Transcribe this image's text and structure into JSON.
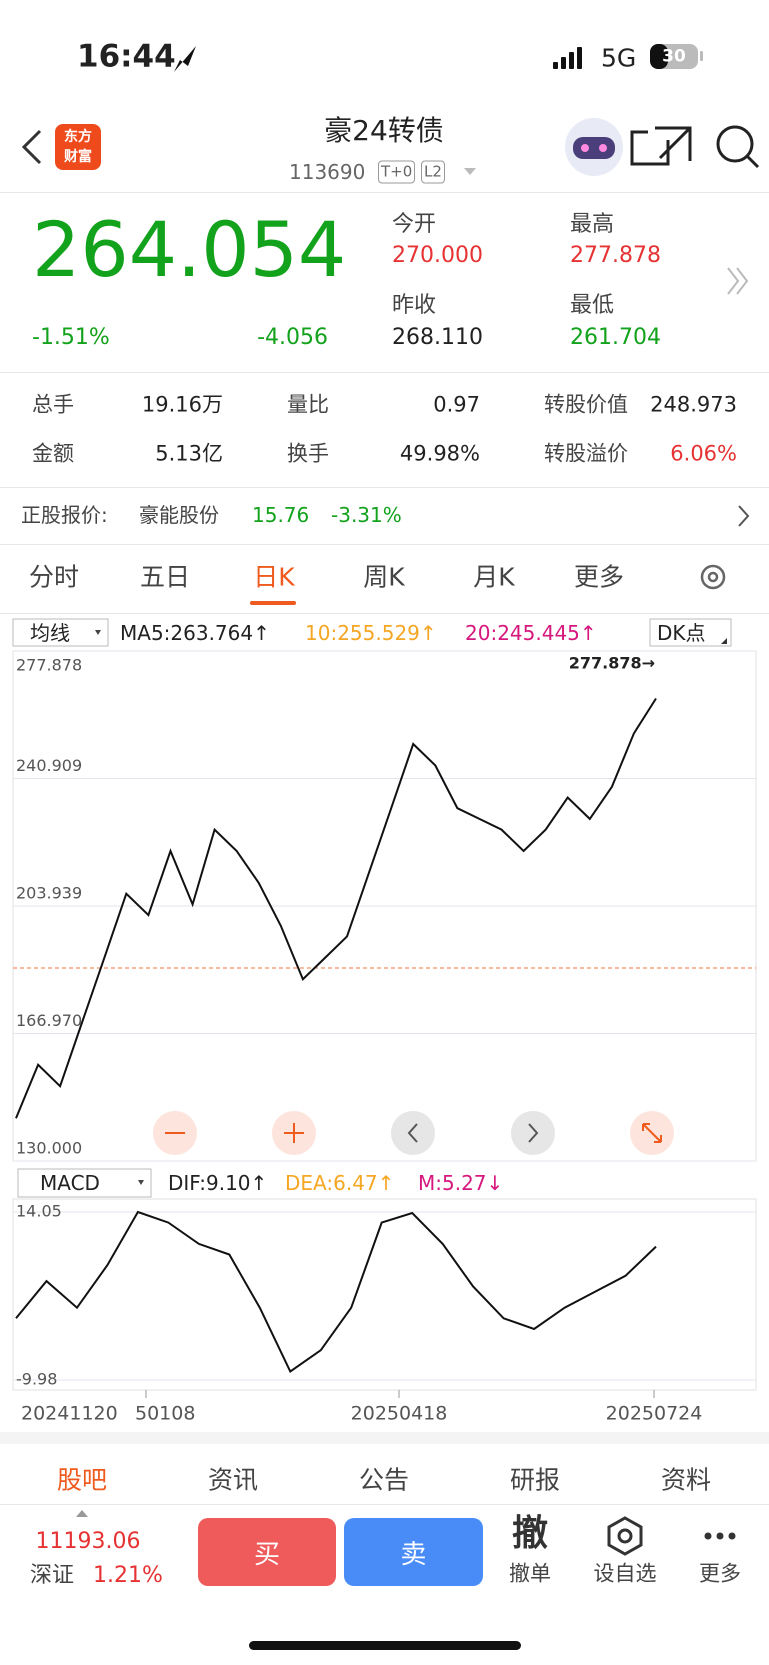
{
  "status": {
    "time": "16:44",
    "network": "5G",
    "battery": "30"
  },
  "header": {
    "logo": [
      "东方",
      "财富"
    ],
    "title": "豪24转债",
    "code": "113690",
    "tags": [
      "T+0",
      "L2"
    ]
  },
  "quote": {
    "price": "264.054",
    "change_pct": "-1.51%",
    "change": "-4.056",
    "open_label": "今开",
    "open": "270.000",
    "high_label": "最高",
    "high": "277.878",
    "prev_label": "昨收",
    "prev": "268.110",
    "low_label": "最低",
    "low": "261.704"
  },
  "stats": [
    [
      "总手",
      "19.16万"
    ],
    [
      "量比",
      "0.97"
    ],
    [
      "转股价值",
      "248.973"
    ],
    [
      "金额",
      "5.13亿"
    ],
    [
      "换手",
      "49.98%"
    ],
    [
      "转股溢价",
      "6.06%"
    ]
  ],
  "underlying": {
    "label": "正股报价:",
    "name": "豪能股份",
    "price": "15.76",
    "change": "-3.31%"
  },
  "tabs": [
    "分时",
    "五日",
    "日K",
    "周K",
    "月K",
    "更多"
  ],
  "ma_bar": {
    "selector": "均线",
    "ma5": "MA5:263.764↑",
    "ma10": "10:255.529↑",
    "ma20": "20:245.445↑",
    "dk": "DK点"
  },
  "price_chart": {
    "type": "line",
    "ylim": [
      130,
      277.878
    ],
    "yticks": [
      {
        "value": 130,
        "label": "130.000"
      },
      {
        "value": 166.97,
        "label": "166.970"
      },
      203.939,
      240.909,
      277.878
    ],
    "max_label": "277.878→",
    "color": "#111111",
    "values": [
      142.4,
      157.9,
      151.7,
      170.3,
      188.9,
      207.5,
      201.3,
      219.9,
      204.4,
      226.1,
      219.9,
      210.6,
      198.2,
      182.7,
      188.9,
      195.1,
      213.7,
      232.3,
      250.9,
      244.7,
      232.3,
      229.2,
      226.1,
      219.9,
      226.1,
      235.4,
      229.2,
      238.5,
      254.0,
      264.1
    ]
  },
  "macd_bar": {
    "selector": "MACD",
    "dif": "DIF:9.10↑",
    "dea": "DEA:6.47↑",
    "m": "M:5.27↓"
  },
  "macd_chart": {
    "type": "line",
    "ylim": [
      -9.98,
      14.05
    ],
    "yticks": [
      -9.98,
      14.05
    ],
    "color": "#111111",
    "values": [
      -1.16,
      4.16,
      0.36,
      6.45,
      14.05,
      12.53,
      9.49,
      7.97,
      0.36,
      -8.76,
      -5.72,
      0.36,
      12.53,
      13.9,
      9.49,
      3.4,
      -1.16,
      -2.68,
      0.36,
      2.64,
      4.92,
      9.1
    ]
  },
  "dates": [
    "20241120",
    "50108",
    "20250418",
    "20250724"
  ],
  "bottom_tabs": [
    "股吧",
    "资讯",
    "公告",
    "研报",
    "资料"
  ],
  "index": {
    "value": "11193.06",
    "name": "深证",
    "change": "1.21%"
  },
  "actions": {
    "buy": "买",
    "sell": "卖",
    "cancel_icon": "撤",
    "cancel": "撤单",
    "watch": "设自选",
    "more": "更多"
  }
}
